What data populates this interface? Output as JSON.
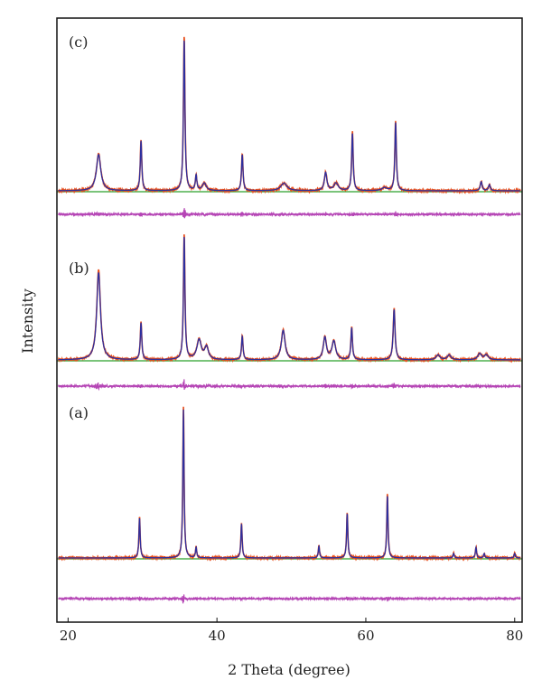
{
  "chart_data": {
    "type": "line",
    "xlabel": "2 Theta (degree)",
    "ylabel": "Intensity",
    "xlim": [
      18.5,
      81
    ],
    "xticks": [
      20,
      40,
      60,
      80
    ],
    "grid": false,
    "colors": {
      "observed": "#e8501e",
      "calculated": "#2d2f9e",
      "background": "#2aa02a",
      "difference": "#b545b5"
    },
    "panels": [
      {
        "label": "(c)",
        "peaks": [
          {
            "x": 24.1,
            "h": 0.24,
            "w": 0.35
          },
          {
            "x": 29.8,
            "h": 0.33,
            "w": 0.12
          },
          {
            "x": 35.6,
            "h": 1.0,
            "w": 0.12
          },
          {
            "x": 37.2,
            "h": 0.1,
            "w": 0.12
          },
          {
            "x": 38.3,
            "h": 0.05,
            "w": 0.3
          },
          {
            "x": 43.4,
            "h": 0.24,
            "w": 0.12
          },
          {
            "x": 49.0,
            "h": 0.05,
            "w": 0.5
          },
          {
            "x": 54.6,
            "h": 0.12,
            "w": 0.2
          },
          {
            "x": 56.0,
            "h": 0.05,
            "w": 0.35
          },
          {
            "x": 58.2,
            "h": 0.38,
            "w": 0.12
          },
          {
            "x": 62.5,
            "h": 0.02,
            "w": 0.4
          },
          {
            "x": 64.0,
            "h": 0.45,
            "w": 0.12
          },
          {
            "x": 75.5,
            "h": 0.06,
            "w": 0.15
          },
          {
            "x": 76.6,
            "h": 0.04,
            "w": 0.15
          }
        ]
      },
      {
        "label": "(b)",
        "peaks": [
          {
            "x": 24.1,
            "h": 0.71,
            "w": 0.3
          },
          {
            "x": 29.8,
            "h": 0.3,
            "w": 0.12
          },
          {
            "x": 35.6,
            "h": 1.0,
            "w": 0.12
          },
          {
            "x": 37.6,
            "h": 0.16,
            "w": 0.35
          },
          {
            "x": 38.6,
            "h": 0.1,
            "w": 0.3
          },
          {
            "x": 43.4,
            "h": 0.19,
            "w": 0.12
          },
          {
            "x": 48.9,
            "h": 0.24,
            "w": 0.3
          },
          {
            "x": 54.5,
            "h": 0.18,
            "w": 0.25
          },
          {
            "x": 55.7,
            "h": 0.15,
            "w": 0.3
          },
          {
            "x": 58.1,
            "h": 0.26,
            "w": 0.12
          },
          {
            "x": 63.8,
            "h": 0.41,
            "w": 0.15
          },
          {
            "x": 69.7,
            "h": 0.04,
            "w": 0.3
          },
          {
            "x": 71.2,
            "h": 0.04,
            "w": 0.3
          },
          {
            "x": 75.3,
            "h": 0.05,
            "w": 0.3
          },
          {
            "x": 76.2,
            "h": 0.04,
            "w": 0.3
          }
        ]
      },
      {
        "label": "(a)",
        "peaks": [
          {
            "x": 29.6,
            "h": 0.27,
            "w": 0.1
          },
          {
            "x": 35.5,
            "h": 1.0,
            "w": 0.1
          },
          {
            "x": 37.2,
            "h": 0.07,
            "w": 0.1
          },
          {
            "x": 43.3,
            "h": 0.23,
            "w": 0.1
          },
          {
            "x": 53.7,
            "h": 0.08,
            "w": 0.1
          },
          {
            "x": 57.5,
            "h": 0.3,
            "w": 0.1
          },
          {
            "x": 62.9,
            "h": 0.42,
            "w": 0.1
          },
          {
            "x": 71.8,
            "h": 0.03,
            "w": 0.1
          },
          {
            "x": 74.8,
            "h": 0.07,
            "w": 0.1
          },
          {
            "x": 75.9,
            "h": 0.03,
            "w": 0.1
          },
          {
            "x": 80.0,
            "h": 0.03,
            "w": 0.1
          }
        ]
      }
    ]
  }
}
